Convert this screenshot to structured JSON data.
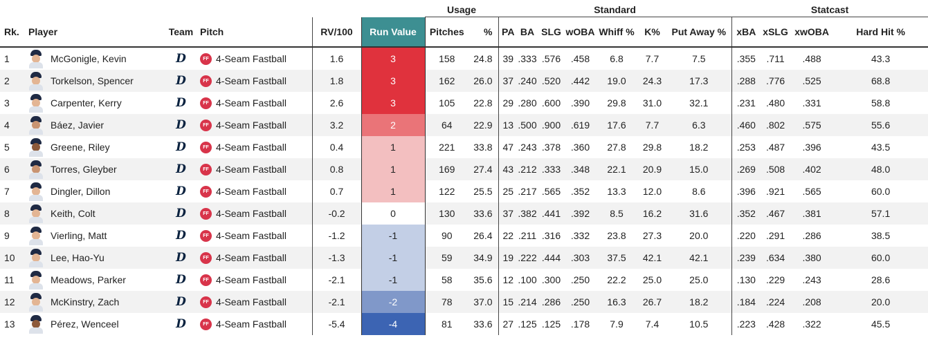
{
  "groups": {
    "usage": "Usage",
    "standard": "Standard",
    "statcast": "Statcast"
  },
  "columns": {
    "rank": "Rk.",
    "player": "Player",
    "team": "Team",
    "pitch": "Pitch",
    "rv100": "RV/100",
    "run_value": "Run Value",
    "pitches": "Pitches",
    "pct": "%",
    "pa": "PA",
    "ba": "BA",
    "slg": "SLG",
    "woba": "wOBA",
    "whiff": "Whiff %",
    "k": "K%",
    "putaway": "Put Away %",
    "xba": "xBA",
    "xslg": "xSLG",
    "xwoba": "xwOBA",
    "hardhit": "Hard Hit %"
  },
  "team_logo_icon": "detroit-tigers-d-logo-icon",
  "pitch_badge": "FF",
  "run_value_colors": {
    "3": "#e0323d",
    "2": "#ea7478",
    "1": "#f3bfc0",
    "0": "#ffffff",
    "-1": "#c3cfe6",
    "-2": "#8098c9",
    "-4": "#3c64b3",
    "text_dark": "#222222",
    "text_light": "#ffffff",
    "header_bg": "#3d8f92"
  },
  "rows": [
    {
      "rank": "1",
      "player": "McGonigle, Kevin",
      "skin": "lt",
      "pitch": "4-Seam Fastball",
      "rv100": "1.6",
      "run_value": "3",
      "pitches": "158",
      "pct": "24.8",
      "pa": "39",
      "ba": ".333",
      "slg": ".576",
      "woba": ".458",
      "whiff": "6.8",
      "k": "7.7",
      "putaway": "7.5",
      "xba": ".355",
      "xslg": ".711",
      "xwoba": ".488",
      "hardhit": "43.3"
    },
    {
      "rank": "2",
      "player": "Torkelson, Spencer",
      "skin": "lt",
      "pitch": "4-Seam Fastball",
      "rv100": "1.8",
      "run_value": "3",
      "pitches": "162",
      "pct": "26.0",
      "pa": "37",
      "ba": ".240",
      "slg": ".520",
      "woba": ".442",
      "whiff": "19.0",
      "k": "24.3",
      "putaway": "17.3",
      "xba": ".288",
      "xslg": ".776",
      "xwoba": ".525",
      "hardhit": "68.8"
    },
    {
      "rank": "3",
      "player": "Carpenter, Kerry",
      "skin": "lt",
      "pitch": "4-Seam Fastball",
      "rv100": "2.6",
      "run_value": "3",
      "pitches": "105",
      "pct": "22.8",
      "pa": "29",
      "ba": ".280",
      "slg": ".600",
      "woba": ".390",
      "whiff": "29.8",
      "k": "31.0",
      "putaway": "32.1",
      "xba": ".231",
      "xslg": ".480",
      "xwoba": ".331",
      "hardhit": "58.8"
    },
    {
      "rank": "4",
      "player": "Báez, Javier",
      "skin": "md",
      "pitch": "4-Seam Fastball",
      "rv100": "3.2",
      "run_value": "2",
      "pitches": "64",
      "pct": "22.9",
      "pa": "13",
      "ba": ".500",
      "slg": ".900",
      "woba": ".619",
      "whiff": "17.6",
      "k": "7.7",
      "putaway": "6.3",
      "xba": ".460",
      "xslg": ".802",
      "xwoba": ".575",
      "hardhit": "55.6"
    },
    {
      "rank": "5",
      "player": "Greene, Riley",
      "skin": "dk",
      "pitch": "4-Seam Fastball",
      "rv100": "0.4",
      "run_value": "1",
      "pitches": "221",
      "pct": "33.8",
      "pa": "47",
      "ba": ".243",
      "slg": ".378",
      "woba": ".360",
      "whiff": "27.8",
      "k": "29.8",
      "putaway": "18.2",
      "xba": ".253",
      "xslg": ".487",
      "xwoba": ".396",
      "hardhit": "43.5"
    },
    {
      "rank": "6",
      "player": "Torres, Gleyber",
      "skin": "md",
      "pitch": "4-Seam Fastball",
      "rv100": "0.8",
      "run_value": "1",
      "pitches": "169",
      "pct": "27.4",
      "pa": "43",
      "ba": ".212",
      "slg": ".333",
      "woba": ".348",
      "whiff": "22.1",
      "k": "20.9",
      "putaway": "15.0",
      "xba": ".269",
      "xslg": ".508",
      "xwoba": ".402",
      "hardhit": "48.0"
    },
    {
      "rank": "7",
      "player": "Dingler, Dillon",
      "skin": "lt",
      "pitch": "4-Seam Fastball",
      "rv100": "0.7",
      "run_value": "1",
      "pitches": "122",
      "pct": "25.5",
      "pa": "25",
      "ba": ".217",
      "slg": ".565",
      "woba": ".352",
      "whiff": "13.3",
      "k": "12.0",
      "putaway": "8.6",
      "xba": ".396",
      "xslg": ".921",
      "xwoba": ".565",
      "hardhit": "60.0"
    },
    {
      "rank": "8",
      "player": "Keith, Colt",
      "skin": "lt",
      "pitch": "4-Seam Fastball",
      "rv100": "-0.2",
      "run_value": "0",
      "pitches": "130",
      "pct": "33.6",
      "pa": "37",
      "ba": ".382",
      "slg": ".441",
      "woba": ".392",
      "whiff": "8.5",
      "k": "16.2",
      "putaway": "31.6",
      "xba": ".352",
      "xslg": ".467",
      "xwoba": ".381",
      "hardhit": "57.1"
    },
    {
      "rank": "9",
      "player": "Vierling, Matt",
      "skin": "lt",
      "pitch": "4-Seam Fastball",
      "rv100": "-1.2",
      "run_value": "-1",
      "pitches": "90",
      "pct": "26.4",
      "pa": "22",
      "ba": ".211",
      "slg": ".316",
      "woba": ".332",
      "whiff": "23.8",
      "k": "27.3",
      "putaway": "20.0",
      "xba": ".220",
      "xslg": ".291",
      "xwoba": ".286",
      "hardhit": "38.5"
    },
    {
      "rank": "10",
      "player": "Lee, Hao-Yu",
      "skin": "lt",
      "pitch": "4-Seam Fastball",
      "rv100": "-1.3",
      "run_value": "-1",
      "pitches": "59",
      "pct": "34.9",
      "pa": "19",
      "ba": ".222",
      "slg": ".444",
      "woba": ".303",
      "whiff": "37.5",
      "k": "42.1",
      "putaway": "42.1",
      "xba": ".239",
      "xslg": ".634",
      "xwoba": ".380",
      "hardhit": "60.0"
    },
    {
      "rank": "11",
      "player": "Meadows, Parker",
      "skin": "lt",
      "pitch": "4-Seam Fastball",
      "rv100": "-2.1",
      "run_value": "-1",
      "pitches": "58",
      "pct": "35.6",
      "pa": "12",
      "ba": ".100",
      "slg": ".300",
      "woba": ".250",
      "whiff": "22.2",
      "k": "25.0",
      "putaway": "25.0",
      "xba": ".130",
      "xslg": ".229",
      "xwoba": ".243",
      "hardhit": "28.6"
    },
    {
      "rank": "12",
      "player": "McKinstry, Zach",
      "skin": "lt",
      "pitch": "4-Seam Fastball",
      "rv100": "-2.1",
      "run_value": "-2",
      "pitches": "78",
      "pct": "37.0",
      "pa": "15",
      "ba": ".214",
      "slg": ".286",
      "woba": ".250",
      "whiff": "16.3",
      "k": "26.7",
      "putaway": "18.2",
      "xba": ".184",
      "xslg": ".224",
      "xwoba": ".208",
      "hardhit": "20.0"
    },
    {
      "rank": "13",
      "player": "Pérez, Wenceel",
      "skin": "dk",
      "pitch": "4-Seam Fastball",
      "rv100": "-5.4",
      "run_value": "-4",
      "pitches": "81",
      "pct": "33.6",
      "pa": "27",
      "ba": ".125",
      "slg": ".125",
      "woba": ".178",
      "whiff": "7.9",
      "k": "7.4",
      "putaway": "10.5",
      "xba": ".223",
      "xslg": ".428",
      "xwoba": ".322",
      "hardhit": "45.5"
    }
  ]
}
